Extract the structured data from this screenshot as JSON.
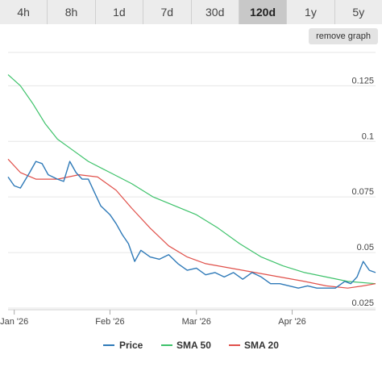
{
  "tabs": [
    {
      "label": "4h",
      "active": false
    },
    {
      "label": "8h",
      "active": false
    },
    {
      "label": "1d",
      "active": false
    },
    {
      "label": "7d",
      "active": false
    },
    {
      "label": "30d",
      "active": false
    },
    {
      "label": "120d",
      "active": true
    },
    {
      "label": "1y",
      "active": false
    },
    {
      "label": "5y",
      "active": false
    }
  ],
  "remove_graph_label": "remove graph",
  "colors": {
    "price": "#2f7ab8",
    "sma50": "#3dc26a",
    "sma20": "#e0504a",
    "grid": "#e6e6e6",
    "tab_bg": "#ececec",
    "tab_active_bg": "#c8c8c8"
  },
  "chart_data": {
    "type": "line",
    "ylim": [
      0.025,
      0.14
    ],
    "xlim": [
      "2025-12-30",
      "2026-04-28"
    ],
    "yticks": [
      {
        "value": 0.025,
        "label": "0.025"
      },
      {
        "value": 0.05,
        "label": "0.05"
      },
      {
        "value": 0.075,
        "label": "0.075"
      },
      {
        "value": 0.1,
        "label": "0.1"
      },
      {
        "value": 0.125,
        "label": "0.125"
      }
    ],
    "xticks": [
      {
        "date": "2026-01-01",
        "label": "Jan '26"
      },
      {
        "date": "2026-02-01",
        "label": "Feb '26"
      },
      {
        "date": "2026-03-01",
        "label": "Mar '26"
      },
      {
        "date": "2026-04-01",
        "label": "Apr '26"
      }
    ],
    "grid": true,
    "legend_position": "bottom",
    "series": [
      {
        "name": "Price",
        "color": "#2f7ab8",
        "points": [
          [
            "2025-12-30",
            0.084
          ],
          [
            "2026-01-01",
            0.08
          ],
          [
            "2026-01-03",
            0.079
          ],
          [
            "2026-01-06",
            0.086
          ],
          [
            "2026-01-08",
            0.091
          ],
          [
            "2026-01-10",
            0.09
          ],
          [
            "2026-01-12",
            0.085
          ],
          [
            "2026-01-15",
            0.083
          ],
          [
            "2026-01-17",
            0.082
          ],
          [
            "2026-01-19",
            0.091
          ],
          [
            "2026-01-21",
            0.086
          ],
          [
            "2026-01-23",
            0.083
          ],
          [
            "2026-01-25",
            0.083
          ],
          [
            "2026-01-27",
            0.077
          ],
          [
            "2026-01-29",
            0.071
          ],
          [
            "2026-02-01",
            0.067
          ],
          [
            "2026-02-03",
            0.063
          ],
          [
            "2026-02-05",
            0.058
          ],
          [
            "2026-02-07",
            0.054
          ],
          [
            "2026-02-09",
            0.046
          ],
          [
            "2026-02-11",
            0.051
          ],
          [
            "2026-02-14",
            0.048
          ],
          [
            "2026-02-17",
            0.047
          ],
          [
            "2026-02-20",
            0.049
          ],
          [
            "2026-02-23",
            0.045
          ],
          [
            "2026-02-26",
            0.042
          ],
          [
            "2026-03-01",
            0.043
          ],
          [
            "2026-03-04",
            0.04
          ],
          [
            "2026-03-07",
            0.041
          ],
          [
            "2026-03-10",
            0.039
          ],
          [
            "2026-03-13",
            0.041
          ],
          [
            "2026-03-16",
            0.038
          ],
          [
            "2026-03-19",
            0.041
          ],
          [
            "2026-03-22",
            0.039
          ],
          [
            "2026-03-25",
            0.036
          ],
          [
            "2026-03-28",
            0.036
          ],
          [
            "2026-03-31",
            0.035
          ],
          [
            "2026-04-03",
            0.034
          ],
          [
            "2026-04-06",
            0.035
          ],
          [
            "2026-04-09",
            0.034
          ],
          [
            "2026-04-12",
            0.034
          ],
          [
            "2026-04-15",
            0.034
          ],
          [
            "2026-04-18",
            0.037
          ],
          [
            "2026-04-20",
            0.036
          ],
          [
            "2026-04-22",
            0.039
          ],
          [
            "2026-04-24",
            0.046
          ],
          [
            "2026-04-26",
            0.042
          ],
          [
            "2026-04-28",
            0.041
          ]
        ]
      },
      {
        "name": "SMA 50",
        "color": "#3dc26a",
        "points": [
          [
            "2025-12-30",
            0.13
          ],
          [
            "2026-01-03",
            0.125
          ],
          [
            "2026-01-07",
            0.117
          ],
          [
            "2026-01-11",
            0.108
          ],
          [
            "2026-01-15",
            0.101
          ],
          [
            "2026-01-20",
            0.096
          ],
          [
            "2026-01-25",
            0.091
          ],
          [
            "2026-02-01",
            0.086
          ],
          [
            "2026-02-08",
            0.081
          ],
          [
            "2026-02-15",
            0.075
          ],
          [
            "2026-02-22",
            0.071
          ],
          [
            "2026-03-01",
            0.067
          ],
          [
            "2026-03-08",
            0.061
          ],
          [
            "2026-03-15",
            0.054
          ],
          [
            "2026-03-22",
            0.048
          ],
          [
            "2026-03-29",
            0.044
          ],
          [
            "2026-04-05",
            0.041
          ],
          [
            "2026-04-12",
            0.039
          ],
          [
            "2026-04-19",
            0.037
          ],
          [
            "2026-04-28",
            0.036
          ]
        ]
      },
      {
        "name": "SMA 20",
        "color": "#e0504a",
        "points": [
          [
            "2025-12-30",
            0.092
          ],
          [
            "2026-01-03",
            0.086
          ],
          [
            "2026-01-08",
            0.083
          ],
          [
            "2026-01-15",
            0.083
          ],
          [
            "2026-01-22",
            0.085
          ],
          [
            "2026-01-28",
            0.084
          ],
          [
            "2026-02-03",
            0.078
          ],
          [
            "2026-02-08",
            0.07
          ],
          [
            "2026-02-14",
            0.061
          ],
          [
            "2026-02-20",
            0.053
          ],
          [
            "2026-02-26",
            0.048
          ],
          [
            "2026-03-04",
            0.045
          ],
          [
            "2026-03-12",
            0.043
          ],
          [
            "2026-03-20",
            0.041
          ],
          [
            "2026-03-28",
            0.039
          ],
          [
            "2026-04-05",
            0.037
          ],
          [
            "2026-04-12",
            0.035
          ],
          [
            "2026-04-19",
            0.034
          ],
          [
            "2026-04-24",
            0.035
          ],
          [
            "2026-04-28",
            0.036
          ]
        ]
      }
    ]
  }
}
